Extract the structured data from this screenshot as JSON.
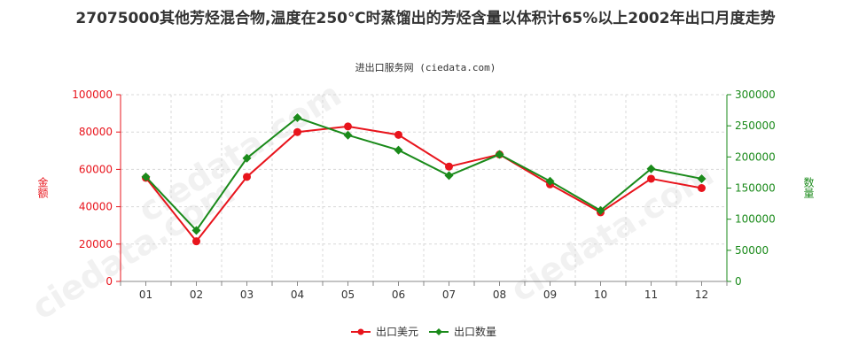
{
  "title": "27075000其他芳烃混合物,温度在250℃时蒸馏出的芳烃含量以体积计65%以上2002年出口月度走势",
  "subtitle": "进出口服务网 (ciedata.com)",
  "watermark": "ciedata.com",
  "colors": {
    "series1": "#e8141c",
    "series2": "#1a8a1a",
    "grid": "#d8d8d8",
    "axis": "#888888"
  },
  "chart_data": {
    "type": "line",
    "categories": [
      "01",
      "02",
      "03",
      "04",
      "05",
      "06",
      "07",
      "08",
      "09",
      "10",
      "11",
      "12"
    ],
    "ylabel_left": "金额",
    "ylabel_right": "数量",
    "ylim_left": [
      0,
      100000
    ],
    "ylim_right": [
      0,
      300000
    ],
    "yticks_left": [
      "0",
      "20000",
      "40000",
      "60000",
      "80000",
      "100000"
    ],
    "yticks_right": [
      "0",
      "50000",
      "100000",
      "150000",
      "200000",
      "250000",
      "300000"
    ],
    "grid": true,
    "legend_position": "bottom",
    "series": [
      {
        "name": "出口美元",
        "axis": "left",
        "color": "#e8141c",
        "values": [
          55500,
          21500,
          56000,
          80000,
          83000,
          78500,
          61500,
          68000,
          52000,
          37000,
          55000,
          50000
        ]
      },
      {
        "name": "出口数量",
        "axis": "right",
        "color": "#1a8a1a",
        "values": [
          168000,
          82000,
          198000,
          263000,
          235000,
          211000,
          170000,
          204000,
          161000,
          114000,
          181000,
          165000
        ]
      }
    ]
  }
}
